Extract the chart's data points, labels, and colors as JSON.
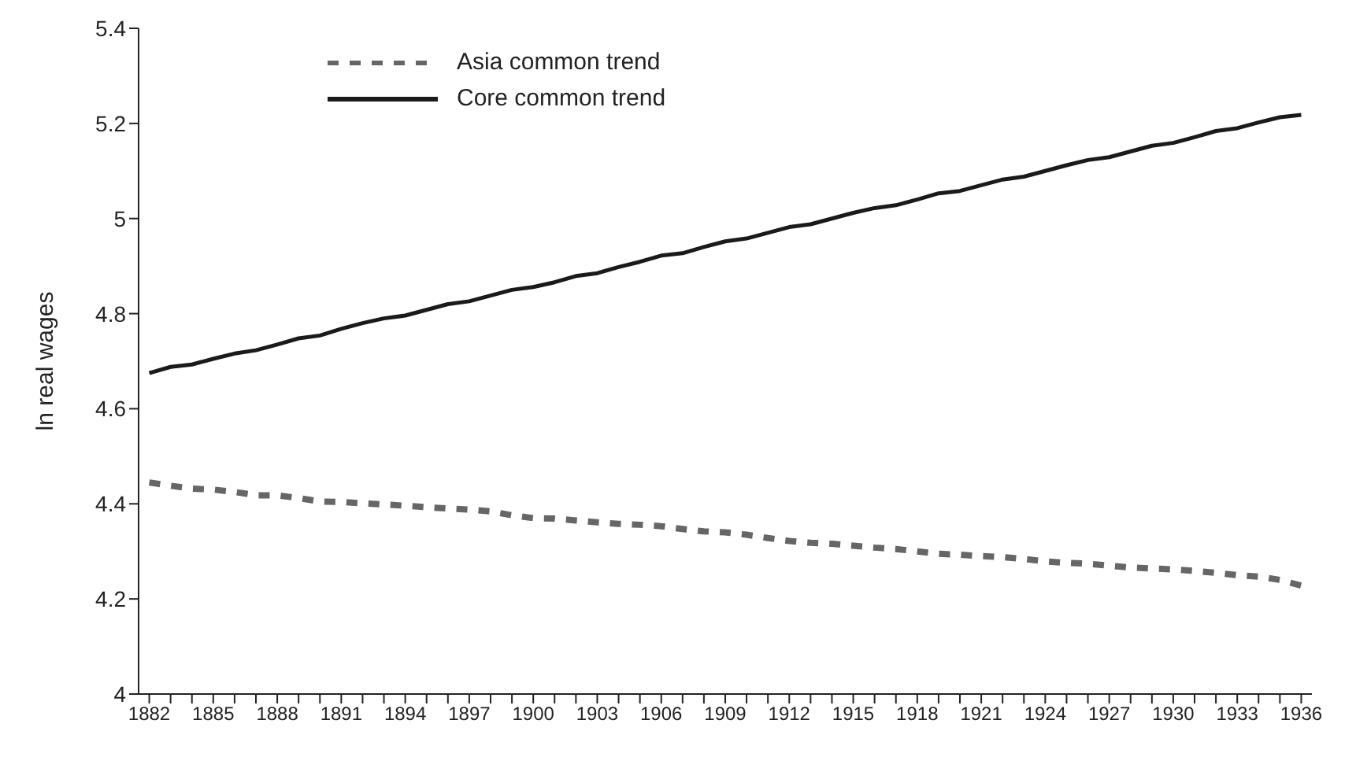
{
  "chart_data": {
    "type": "line",
    "ylabel": "ln real wages",
    "categories": [
      "1882",
      null,
      null,
      "1885",
      null,
      null,
      "1888",
      null,
      null,
      "1891",
      null,
      null,
      "1894",
      null,
      null,
      "1897",
      null,
      null,
      "1900",
      null,
      null,
      "1903",
      null,
      null,
      "1906",
      null,
      null,
      "1909",
      null,
      null,
      "1912",
      null,
      null,
      "1915",
      null,
      null,
      "1918",
      null,
      null,
      "1921",
      null,
      null,
      "1924",
      null,
      null,
      "1927",
      null,
      null,
      "1930",
      null,
      null,
      "1933",
      null,
      null,
      "1936"
    ],
    "series": [
      {
        "name": "Asia common trend",
        "color": "#666666",
        "line_style": "dashed",
        "values": [
          4.445,
          4.438,
          4.432,
          4.43,
          4.425,
          4.418,
          4.418,
          4.412,
          4.405,
          4.404,
          4.401,
          4.399,
          4.396,
          4.393,
          4.39,
          4.388,
          4.384,
          4.376,
          4.37,
          4.369,
          4.365,
          4.361,
          4.358,
          4.356,
          4.353,
          4.347,
          4.342,
          4.34,
          4.335,
          4.328,
          4.322,
          4.318,
          4.316,
          4.312,
          4.308,
          4.305,
          4.3,
          4.295,
          4.293,
          4.29,
          4.288,
          4.284,
          4.279,
          4.276,
          4.274,
          4.27,
          4.266,
          4.264,
          4.262,
          4.259,
          4.255,
          4.25,
          4.247,
          4.24,
          4.228
        ]
      },
      {
        "name": "Core common trend",
        "color": "#1a1a1a",
        "line_style": "solid",
        "values": [
          4.675,
          4.688,
          4.693,
          4.705,
          4.716,
          4.723,
          4.735,
          4.748,
          4.754,
          4.768,
          4.78,
          4.79,
          4.796,
          4.808,
          4.82,
          4.826,
          4.838,
          4.85,
          4.856,
          4.866,
          4.879,
          4.885,
          4.898,
          4.909,
          4.922,
          4.927,
          4.94,
          4.952,
          4.958,
          4.97,
          4.982,
          4.988,
          5.0,
          5.012,
          5.022,
          5.028,
          5.04,
          5.053,
          5.058,
          5.07,
          5.082,
          5.088,
          5.1,
          5.112,
          5.123,
          5.129,
          5.141,
          5.153,
          5.159,
          5.171,
          5.184,
          5.19,
          5.202,
          5.213,
          5.218
        ]
      }
    ],
    "ylim": [
      4,
      5.4
    ],
    "yticks": [
      4,
      4.2,
      4.4,
      4.6,
      4.8,
      5,
      5.2,
      5.4
    ],
    "grid": false,
    "legend": "top left",
    "marker": "none"
  }
}
